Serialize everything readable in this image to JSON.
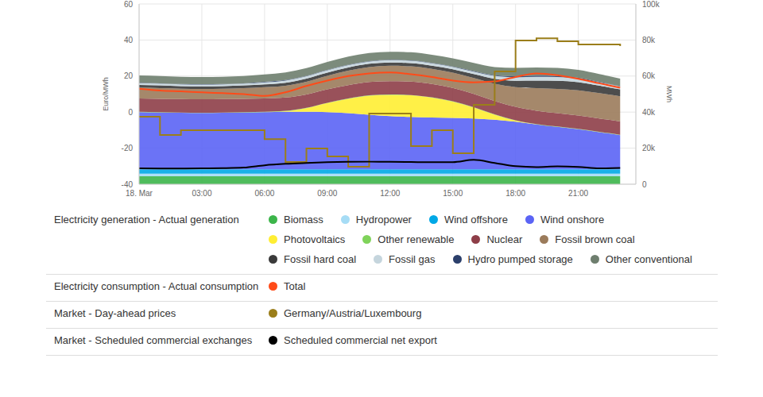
{
  "chart_data": {
    "type": "area",
    "stacked": true,
    "grid": true,
    "y_label": "Euro/MWh",
    "y2_label": "MWh",
    "x": [
      0,
      1,
      2,
      3,
      4,
      5,
      6,
      7,
      8,
      9,
      10,
      11,
      12,
      13,
      14,
      15,
      16,
      17,
      18,
      19,
      20,
      21,
      22,
      23
    ],
    "xlim": [
      0,
      23.75
    ],
    "xticks": [
      {
        "value": 0,
        "label": "18. Mar"
      },
      {
        "value": 3,
        "label": "03:00"
      },
      {
        "value": 6,
        "label": "06:00"
      },
      {
        "value": 9,
        "label": "09:00"
      },
      {
        "value": 12,
        "label": "12:00"
      },
      {
        "value": 15,
        "label": "15:00"
      },
      {
        "value": 18,
        "label": "18:00"
      },
      {
        "value": 21,
        "label": "21:00"
      }
    ],
    "ylim": [
      -40,
      60
    ],
    "yticks": [
      -40,
      -20,
      0,
      20,
      40,
      60
    ],
    "y2lim": [
      0,
      100000
    ],
    "y2ticks": [
      0,
      {
        "value": 20000,
        "label": "20k"
      },
      {
        "value": 40000,
        "label": "40k"
      },
      {
        "value": 60000,
        "label": "60k"
      },
      {
        "value": 80000,
        "label": "80k"
      },
      {
        "value": 100000,
        "label": "100k"
      }
    ],
    "series": [
      {
        "name": "Biomass",
        "type": "area",
        "axis": "y2",
        "color": "#3cb54a",
        "values": [
          4400,
          4400,
          4400,
          4400,
          4400,
          4400,
          4400,
          4400,
          4400,
          4400,
          4400,
          4400,
          4400,
          4400,
          4400,
          4400,
          4400,
          4400,
          4400,
          4400,
          4400,
          4400,
          4400,
          4400
        ]
      },
      {
        "name": "Hydropower",
        "type": "area",
        "axis": "y2",
        "color": "#a6dcf5",
        "values": [
          1400,
          1400,
          1400,
          1400,
          1400,
          1400,
          1400,
          1400,
          1400,
          1400,
          1400,
          1400,
          1400,
          1400,
          1400,
          1400,
          1400,
          1400,
          1400,
          1400,
          1400,
          1400,
          1400,
          1400
        ]
      },
      {
        "name": "Wind offshore",
        "type": "area",
        "axis": "y2",
        "color": "#00a8e6",
        "values": [
          2500,
          2500,
          2500,
          2500,
          2500,
          2500,
          2500,
          2500,
          2500,
          2500,
          2500,
          2500,
          2500,
          2500,
          2500,
          2500,
          2500,
          2500,
          2500,
          2500,
          2500,
          2500,
          2500,
          2500
        ]
      },
      {
        "name": "Wind onshore",
        "type": "area",
        "axis": "y2",
        "color": "#5b64f5",
        "values": [
          31700,
          31500,
          31300,
          31200,
          31300,
          31500,
          31700,
          31900,
          31900,
          31700,
          31100,
          30300,
          29500,
          29000,
          28700,
          28500,
          28200,
          27500,
          26400,
          24900,
          23500,
          22200,
          20600,
          18900
        ]
      },
      {
        "name": "Photovoltaics",
        "type": "area",
        "axis": "y2",
        "color": "#ffee33",
        "values": [
          0,
          0,
          0,
          0,
          0,
          0,
          0,
          300,
          2000,
          5000,
          8000,
          10500,
          11800,
          12000,
          11000,
          9000,
          6000,
          2800,
          600,
          0,
          0,
          0,
          0,
          0
        ]
      },
      {
        "name": "Other renewable",
        "type": "area",
        "axis": "y2",
        "color": "#7fd35a",
        "values": [
          200,
          200,
          200,
          200,
          200,
          200,
          200,
          200,
          200,
          200,
          200,
          200,
          200,
          200,
          200,
          200,
          200,
          200,
          200,
          200,
          200,
          200,
          200,
          200
        ]
      },
      {
        "name": "Nuclear",
        "type": "area",
        "axis": "y2",
        "color": "#8e3e48",
        "values": [
          7400,
          7400,
          7400,
          7400,
          7400,
          7400,
          7400,
          7400,
          7400,
          7400,
          7400,
          7400,
          7400,
          7400,
          7400,
          7400,
          7400,
          7400,
          7400,
          7400,
          7400,
          7400,
          7400,
          7400
        ]
      },
      {
        "name": "Fossil brown coal",
        "type": "area",
        "axis": "y2",
        "color": "#9b7b5b",
        "values": [
          6000,
          5900,
          5800,
          5800,
          5800,
          5900,
          6200,
          6500,
          7000,
          7500,
          8000,
          8300,
          8500,
          8500,
          8400,
          8500,
          8800,
          9500,
          11000,
          12500,
          13500,
          14000,
          14000,
          14000
        ]
      },
      {
        "name": "Fossil hard coal",
        "type": "area",
        "axis": "y2",
        "color": "#3a3a3a",
        "values": [
          1500,
          1500,
          1400,
          1400,
          1400,
          1500,
          1600,
          1700,
          1800,
          1800,
          1800,
          1800,
          1800,
          1800,
          1800,
          1900,
          2200,
          2800,
          3500,
          4200,
          4500,
          4500,
          4200,
          3800
        ]
      },
      {
        "name": "Fossil gas",
        "type": "area",
        "axis": "y2",
        "color": "#c5d5dd",
        "values": [
          1000,
          1000,
          1000,
          1000,
          1000,
          1000,
          1100,
          1200,
          1300,
          1300,
          1300,
          1300,
          1300,
          1300,
          1300,
          1300,
          1400,
          1600,
          1900,
          2100,
          2100,
          2000,
          1800,
          1600
        ]
      },
      {
        "name": "Hydro pumped storage",
        "type": "area",
        "axis": "y2",
        "color": "#2b3f6b",
        "values": [
          200,
          200,
          200,
          200,
          200,
          200,
          300,
          300,
          200,
          200,
          200,
          200,
          200,
          200,
          200,
          200,
          300,
          400,
          600,
          600,
          500,
          400,
          300,
          200
        ]
      },
      {
        "name": "Other conventional",
        "type": "area",
        "axis": "y2",
        "color": "#6e7e6e",
        "values": [
          4000,
          4000,
          4000,
          4000,
          4000,
          4000,
          4100,
          4200,
          4300,
          4400,
          4500,
          4500,
          4500,
          4500,
          4500,
          4500,
          4500,
          4500,
          4600,
          4600,
          4500,
          4400,
          4300,
          4200
        ]
      },
      {
        "name": "Total",
        "type": "line",
        "axis": "y2",
        "color": "#ff4b19",
        "values": [
          53000,
          52000,
          51500,
          51000,
          50500,
          50000,
          49000,
          51000,
          54500,
          57500,
          60000,
          61500,
          62000,
          61000,
          59500,
          57500,
          56500,
          57000,
          59500,
          61500,
          60500,
          58500,
          56000,
          53500
        ]
      },
      {
        "name": "Germany/Austria/Luxembourg",
        "type": "line",
        "line_style": "step",
        "color": "#9b7e1a",
        "values": [
          -2.6,
          -12.7,
          -10,
          -10,
          -10,
          -10,
          -15,
          -27.7,
          -20.2,
          -24.6,
          -30.3,
          -0.8,
          -0.8,
          -18.8,
          -10,
          -22.8,
          4.1,
          22.6,
          39.7,
          41,
          39.3,
          37.5,
          37.5,
          36.7
        ]
      },
      {
        "name": "Scheduled commercial net export",
        "type": "line",
        "axis": "y2",
        "color": "#000000",
        "values": [
          8800,
          8700,
          8700,
          8800,
          8900,
          9200,
          10500,
          11300,
          11800,
          12200,
          12400,
          12500,
          12400,
          12300,
          12200,
          12200,
          13500,
          11800,
          10000,
          9500,
          9900,
          9600,
          8800,
          9000
        ]
      }
    ],
    "legend_groups": [
      {
        "title": "Electricity generation - Actual generation",
        "items": [
          "Biomass",
          "Hydropower",
          "Wind offshore",
          "Wind onshore",
          "Photovoltaics",
          "Other renewable",
          "Nuclear",
          "Fossil brown coal",
          "Fossil hard coal",
          "Fossil gas",
          "Hydro pumped storage",
          "Other conventional"
        ]
      },
      {
        "title": "Electricity consumption - Actual consumption",
        "items": [
          "Total"
        ]
      },
      {
        "title": "Market - Day-ahead prices",
        "items": [
          "Germany/Austria/Luxembourg"
        ]
      },
      {
        "title": "Market - Scheduled commercial exchanges",
        "items": [
          "Scheduled commercial net export"
        ]
      }
    ]
  }
}
